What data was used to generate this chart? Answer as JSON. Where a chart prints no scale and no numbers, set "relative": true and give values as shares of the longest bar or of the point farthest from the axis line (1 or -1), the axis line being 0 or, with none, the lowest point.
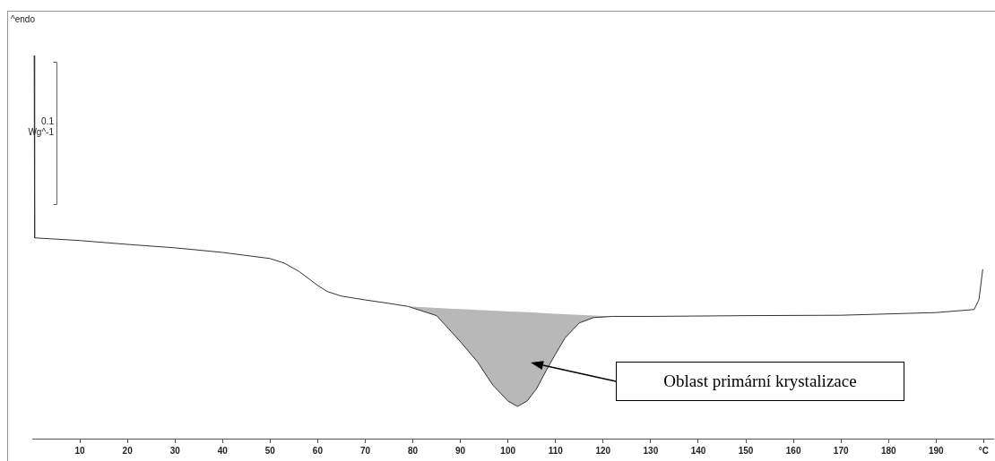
{
  "chart_data": {
    "type": "line",
    "relative": true,
    "annotations": [
      "^endo",
      "0.1 Wg^-1",
      "Oblast primární krystalizace"
    ],
    "xlim": [
      0,
      202
    ],
    "xticks": [
      10,
      20,
      30,
      40,
      50,
      60,
      70,
      80,
      90,
      100,
      110,
      120,
      130,
      140,
      150,
      160,
      170,
      180,
      190,
      {
        "value": 200,
        "label": "°C"
      }
    ],
    "series": [
      {
        "color": "#333333",
        "x": [
          0.4,
          0.5,
          10,
          20,
          30,
          40,
          50,
          53,
          56,
          60,
          62,
          65,
          70,
          75,
          79,
          85,
          90,
          93.6,
          96.8,
          100,
          102,
          104,
          106,
          108,
          110,
          112,
          115,
          118,
          122,
          130,
          150,
          170,
          190,
          198,
          199,
          199.8
        ],
        "values": [
          1,
          0.524,
          0.517,
          0.507,
          0.498,
          0.486,
          0.47,
          0.458,
          0.437,
          0.4,
          0.384,
          0.372,
          0.362,
          0.353,
          0.345,
          0.321,
          0.253,
          0.2,
          0.14,
          0.098,
          0.084,
          0.098,
          0.13,
          0.177,
          0.221,
          0.263,
          0.302,
          0.316,
          0.319,
          0.319,
          0.321,
          0.322,
          0.329,
          0.337,
          0.363,
          0.442
        ],
        "lower": [
          null,
          null,
          null,
          null,
          null,
          null,
          null,
          null,
          null,
          null,
          null,
          null,
          null,
          null,
          0.345,
          0.321,
          0.253,
          0.2,
          0.14,
          0.098,
          0.084,
          0.098,
          0.13,
          0.177,
          0.221,
          0.263,
          0.302,
          0.316,
          0.319,
          null,
          null,
          null,
          null,
          null,
          null,
          null
        ],
        "upper": [
          null,
          null,
          null,
          null,
          null,
          null,
          null,
          null,
          null,
          null,
          null,
          null,
          null,
          null,
          0.345,
          0.341,
          0.338,
          0.336,
          0.334,
          0.332,
          0.331,
          0.33,
          0.329,
          0.327,
          0.326,
          0.325,
          0.323,
          0.321,
          0.319,
          null,
          null,
          null,
          null,
          null,
          null,
          null
        ]
      }
    ]
  }
}
